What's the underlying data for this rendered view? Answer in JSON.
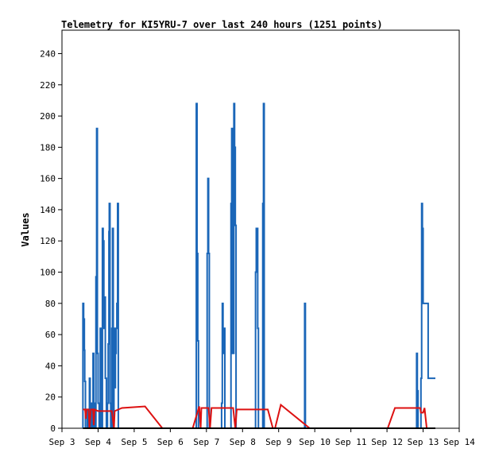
{
  "chart_data": {
    "type": "line",
    "title": "Telemetry for KI5YRU-7 over last 240 hours (1251 points)",
    "ylabel": "Values",
    "xlabel": "",
    "x_tick_labels": [
      "Sep 3",
      "Sep 4",
      "Sep 5",
      "Sep 6",
      "Sep 7",
      "Sep 8",
      "Sep 9",
      "Sep 10",
      "Sep 11",
      "Sep 12",
      "Sep 13",
      "Sep 14"
    ],
    "y_tick_labels": [
      "0",
      "20",
      "40",
      "60",
      "80",
      "100",
      "120",
      "140",
      "160",
      "180",
      "200",
      "220",
      "240"
    ],
    "xlim": [
      0,
      11
    ],
    "ylim": [
      0,
      255
    ],
    "grid": false,
    "legend": "none",
    "series": [
      {
        "color": "#1a66b8",
        "points": [
          [
            0.58,
            0
          ],
          [
            0.58,
            80
          ],
          [
            0.6,
            80
          ],
          [
            0.6,
            70
          ],
          [
            0.62,
            70
          ],
          [
            0.62,
            50
          ],
          [
            0.63,
            50
          ],
          [
            0.63,
            30
          ],
          [
            0.65,
            30
          ],
          [
            0.65,
            0
          ],
          [
            0.7,
            0
          ],
          [
            0.7,
            12
          ],
          [
            0.72,
            12
          ],
          [
            0.72,
            0
          ],
          [
            0.76,
            0
          ],
          [
            0.76,
            32
          ],
          [
            0.78,
            32
          ],
          [
            0.78,
            0
          ],
          [
            0.81,
            0
          ],
          [
            0.81,
            16
          ],
          [
            0.84,
            16
          ],
          [
            0.84,
            0
          ],
          [
            0.86,
            0
          ],
          [
            0.86,
            48
          ],
          [
            0.88,
            48
          ],
          [
            0.88,
            16
          ],
          [
            0.9,
            16
          ],
          [
            0.9,
            0
          ],
          [
            0.94,
            0
          ],
          [
            0.94,
            97
          ],
          [
            0.96,
            97
          ],
          [
            0.96,
            192
          ],
          [
            0.98,
            192
          ],
          [
            0.98,
            48
          ],
          [
            1.0,
            48
          ],
          [
            1.0,
            16
          ],
          [
            1.03,
            16
          ],
          [
            1.03,
            0
          ],
          [
            1.06,
            0
          ],
          [
            1.06,
            64
          ],
          [
            1.08,
            64
          ],
          [
            1.08,
            0
          ],
          [
            1.12,
            0
          ],
          [
            1.12,
            128
          ],
          [
            1.14,
            128
          ],
          [
            1.14,
            120
          ],
          [
            1.16,
            120
          ],
          [
            1.16,
            64
          ],
          [
            1.18,
            64
          ],
          [
            1.18,
            84
          ],
          [
            1.2,
            84
          ],
          [
            1.2,
            32
          ],
          [
            1.23,
            32
          ],
          [
            1.23,
            0
          ],
          [
            1.26,
            0
          ],
          [
            1.26,
            16
          ],
          [
            1.28,
            16
          ],
          [
            1.28,
            54
          ],
          [
            1.3,
            54
          ],
          [
            1.3,
            126
          ],
          [
            1.31,
            126
          ],
          [
            1.31,
            144
          ],
          [
            1.33,
            144
          ],
          [
            1.33,
            16
          ],
          [
            1.35,
            16
          ],
          [
            1.35,
            0
          ],
          [
            1.38,
            0
          ],
          [
            1.38,
            64
          ],
          [
            1.4,
            64
          ],
          [
            1.4,
            128
          ],
          [
            1.42,
            128
          ],
          [
            1.42,
            0
          ],
          [
            1.44,
            0
          ],
          [
            1.44,
            64
          ],
          [
            1.46,
            64
          ],
          [
            1.46,
            26
          ],
          [
            1.48,
            26
          ],
          [
            1.48,
            48
          ],
          [
            1.5,
            48
          ],
          [
            1.5,
            64
          ],
          [
            1.52,
            64
          ],
          [
            1.52,
            80
          ],
          [
            1.54,
            80
          ],
          [
            1.54,
            144
          ],
          [
            1.56,
            144
          ],
          [
            1.56,
            0
          ],
          [
            3.72,
            0
          ],
          [
            3.72,
            208
          ],
          [
            3.74,
            208
          ],
          [
            3.74,
            112
          ],
          [
            3.76,
            112
          ],
          [
            3.76,
            56
          ],
          [
            3.78,
            56
          ],
          [
            3.78,
            0
          ],
          [
            4.02,
            0
          ],
          [
            4.02,
            112
          ],
          [
            4.04,
            112
          ],
          [
            4.04,
            160
          ],
          [
            4.06,
            160
          ],
          [
            4.06,
            112
          ],
          [
            4.08,
            112
          ],
          [
            4.08,
            0
          ],
          [
            4.42,
            0
          ],
          [
            4.42,
            16
          ],
          [
            4.44,
            16
          ],
          [
            4.44,
            80
          ],
          [
            4.46,
            80
          ],
          [
            4.46,
            48
          ],
          [
            4.48,
            48
          ],
          [
            4.48,
            64
          ],
          [
            4.51,
            64
          ],
          [
            4.51,
            0
          ],
          [
            4.68,
            0
          ],
          [
            4.68,
            144
          ],
          [
            4.7,
            144
          ],
          [
            4.7,
            192
          ],
          [
            4.72,
            192
          ],
          [
            4.72,
            48
          ],
          [
            4.76,
            48
          ],
          [
            4.76,
            208
          ],
          [
            4.78,
            208
          ],
          [
            4.78,
            180
          ],
          [
            4.8,
            180
          ],
          [
            4.8,
            130
          ],
          [
            4.82,
            130
          ],
          [
            4.82,
            0
          ],
          [
            5.36,
            0
          ],
          [
            5.36,
            100
          ],
          [
            5.38,
            100
          ],
          [
            5.38,
            128
          ],
          [
            5.42,
            128
          ],
          [
            5.42,
            64
          ],
          [
            5.44,
            64
          ],
          [
            5.44,
            0
          ],
          [
            5.56,
            0
          ],
          [
            5.56,
            144
          ],
          [
            5.58,
            144
          ],
          [
            5.58,
            208
          ],
          [
            5.6,
            208
          ],
          [
            5.6,
            0
          ],
          [
            6.72,
            0
          ],
          [
            6.72,
            80
          ],
          [
            6.74,
            80
          ],
          [
            6.74,
            0
          ],
          [
            9.82,
            0
          ],
          [
            9.82,
            48
          ],
          [
            9.84,
            48
          ],
          [
            9.84,
            24
          ],
          [
            9.86,
            24
          ],
          [
            9.86,
            0
          ],
          [
            9.94,
            0
          ],
          [
            9.94,
            32
          ],
          [
            9.96,
            32
          ],
          [
            9.96,
            144
          ],
          [
            9.98,
            144
          ],
          [
            9.98,
            128
          ],
          [
            10.0,
            128
          ],
          [
            10.0,
            80
          ],
          [
            10.14,
            80
          ],
          [
            10.14,
            32
          ],
          [
            10.34,
            32
          ]
        ]
      },
      {
        "color": "#dd1111",
        "points": [
          [
            0.58,
            12
          ],
          [
            0.64,
            12
          ],
          [
            0.66,
            6
          ],
          [
            0.68,
            12
          ],
          [
            0.74,
            12
          ],
          [
            0.76,
            0
          ],
          [
            0.8,
            12
          ],
          [
            0.86,
            12
          ],
          [
            0.88,
            2
          ],
          [
            0.9,
            12
          ],
          [
            1.0,
            11
          ],
          [
            1.2,
            11
          ],
          [
            1.38,
            11
          ],
          [
            1.44,
            0
          ],
          [
            1.46,
            11
          ],
          [
            1.66,
            13
          ],
          [
            2.3,
            14
          ],
          [
            2.78,
            0
          ],
          [
            3.62,
            0
          ],
          [
            3.8,
            14
          ],
          [
            3.84,
            0
          ],
          [
            3.86,
            13
          ],
          [
            4.06,
            13
          ],
          [
            4.1,
            0
          ],
          [
            4.14,
            13
          ],
          [
            4.74,
            13
          ],
          [
            4.8,
            0
          ],
          [
            4.84,
            12
          ],
          [
            5.7,
            12
          ],
          [
            5.84,
            0
          ],
          [
            5.9,
            0
          ],
          [
            6.06,
            15
          ],
          [
            6.86,
            0
          ],
          [
            9.02,
            0
          ],
          [
            9.22,
            13
          ],
          [
            9.92,
            13
          ],
          [
            9.94,
            10
          ],
          [
            10.0,
            10
          ],
          [
            10.04,
            13
          ],
          [
            10.1,
            0
          ]
        ]
      },
      {
        "color": "#000000",
        "points": [
          [
            0.58,
            0
          ],
          [
            10.34,
            0
          ]
        ]
      }
    ]
  }
}
